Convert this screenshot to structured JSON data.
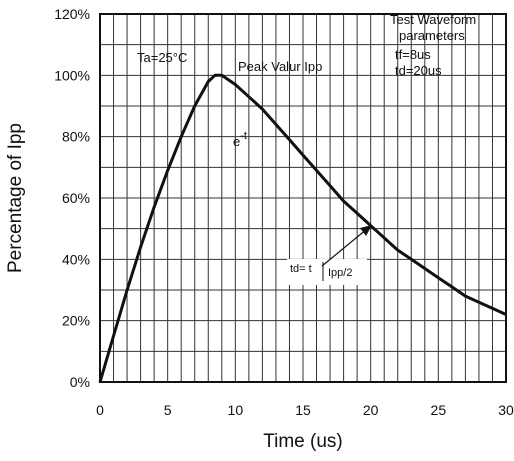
{
  "chart_data": {
    "type": "line",
    "xlabel": "Time (us)",
    "ylabel": "Percentage of Ipp",
    "xlim": [
      0,
      30
    ],
    "ylim": [
      0,
      120
    ],
    "x_ticks": [
      "0",
      "5",
      "10",
      "15",
      "20",
      "25",
      "30"
    ],
    "y_ticks": [
      "0%",
      "20%",
      "40%",
      "60%",
      "80%",
      "100%",
      "120%"
    ],
    "grid": true,
    "x": [
      0,
      1,
      2,
      3,
      4,
      5,
      6,
      7,
      8,
      8.5,
      9,
      10,
      11,
      12,
      13,
      14,
      15,
      16,
      17,
      18,
      19,
      20,
      21,
      22,
      23,
      24,
      25,
      26,
      27,
      28,
      29,
      30
    ],
    "y": [
      0,
      15,
      30,
      44,
      57,
      69,
      80,
      90,
      98,
      100,
      100,
      97,
      93,
      89,
      84,
      79,
      74,
      69,
      64,
      59,
      55,
      51,
      47,
      43,
      40,
      37,
      34,
      31,
      28,
      26,
      24,
      22
    ],
    "annotations": {
      "ta": "Ta=25°C",
      "peak": "Peak Valur Ipp",
      "decay_base": "e",
      "decay_exp": "-t",
      "td": "td= t",
      "ipp_half": "Ipp/2",
      "params_title_1": "Test Waveform",
      "params_title_2": "parameters",
      "tf": "tf=8us",
      "td_value": "td=20us"
    },
    "line_color": "#111111",
    "grid_color": "#333333"
  }
}
